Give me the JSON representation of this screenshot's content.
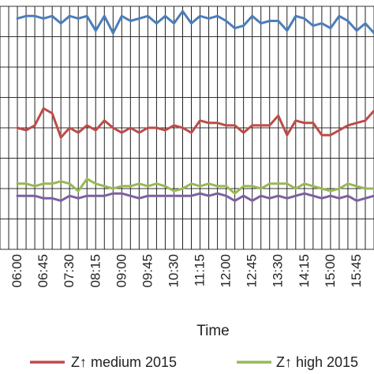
{
  "chart_data": {
    "type": "line",
    "xlabel": "Time",
    "ylabel": "",
    "title": "",
    "ylim": [
      0,
      100
    ],
    "grid": {
      "vertical": true,
      "horizontal": true
    },
    "x_tick_labels": [
      "06:00",
      "06:45",
      "07:30",
      "08:15",
      "09:00",
      "09:45",
      "10:30",
      "11:15",
      "12:00",
      "12:45",
      "13:30",
      "14:15",
      "15:00",
      "15:45"
    ],
    "points_per_tick": 3,
    "x_range": [
      -2,
      41
    ],
    "series": [
      {
        "name": "",
        "color": "#4a7ebb",
        "values": [
          95,
          96,
          96,
          95,
          96,
          93,
          96,
          95,
          96,
          90,
          96,
          89,
          96,
          94,
          95,
          96,
          93,
          96,
          93,
          98,
          93,
          96,
          95,
          96,
          94,
          91,
          92,
          96,
          93,
          94,
          94,
          90,
          96,
          95,
          92,
          93,
          91,
          96,
          94,
          90,
          93,
          89,
          90,
          88,
          88
        ]
      },
      {
        "name": "Z↑ medium 2015",
        "color": "#be4b48",
        "values": [
          50,
          49,
          51,
          58,
          56,
          46,
          50,
          48,
          51,
          49,
          53,
          50,
          48,
          50,
          48,
          50,
          50,
          49,
          51,
          50,
          48,
          53,
          52,
          52,
          51,
          51,
          48,
          51,
          51,
          51,
          55,
          47,
          53,
          52,
          52,
          47,
          47,
          49,
          51,
          52,
          53,
          57,
          50,
          51,
          54,
          49,
          61
        ]
      },
      {
        "name": "Z↑ high 2015",
        "color": "#98b954",
        "values": [
          27,
          27,
          26,
          27,
          27,
          28,
          27,
          24,
          29,
          27,
          26,
          25,
          26,
          26,
          27,
          26,
          27,
          26,
          24,
          25,
          27,
          26,
          27,
          26,
          26,
          23,
          26,
          26,
          25,
          27,
          27,
          27,
          25,
          27,
          26,
          25,
          24,
          25,
          27,
          26,
          25,
          25,
          27,
          27,
          25
        ]
      },
      {
        "name": "",
        "color": "#7d60a0",
        "values": [
          22,
          22,
          22,
          21,
          21,
          20,
          22,
          21,
          22,
          22,
          22,
          23,
          23,
          22,
          21,
          22,
          22,
          22,
          22,
          22,
          22,
          23,
          22,
          23,
          22,
          20,
          22,
          20,
          22,
          21,
          22,
          21,
          22,
          23,
          22,
          21,
          22,
          21,
          22,
          20,
          21,
          22,
          22,
          21,
          22
        ]
      }
    ],
    "legend": {
      "position": "bottom",
      "entries": [
        "Z↑ medium 2015",
        "Z↑ high 2015"
      ]
    }
  }
}
